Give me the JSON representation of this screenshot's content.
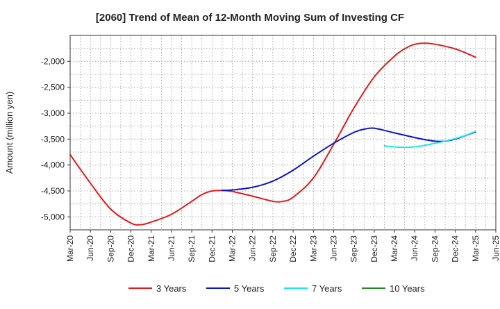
{
  "chart_data": {
    "type": "line",
    "title": "[2060]  Trend of Mean of 12-Month Moving Sum of Investing CF",
    "ylabel": "Amount (million yen)",
    "xlabel": "",
    "xlim": [
      0,
      21
    ],
    "ylim": [
      -5250,
      -1500
    ],
    "y_ticks": [
      -2000,
      -2500,
      -3000,
      -3500,
      -4000,
      -4500,
      -5000
    ],
    "y_tick_labels": [
      "-2,000",
      "-2,500",
      "-3,000",
      "-3,500",
      "-4,000",
      "-4,500",
      "-5,000"
    ],
    "x_tick_labels": [
      "Mar-20",
      "Jun-20",
      "Sep-20",
      "Dec-20",
      "Mar-21",
      "Jun-21",
      "Sep-21",
      "Dec-21",
      "Mar-22",
      "Jun-22",
      "Sep-22",
      "Dec-22",
      "Mar-23",
      "Jun-23",
      "Sep-23",
      "Dec-23",
      "Mar-24",
      "Jun-24",
      "Sep-24",
      "Dec-24",
      "Mar-25",
      "Jun-25"
    ],
    "grid": true,
    "legend_position": "bottom",
    "series": [
      {
        "name": "3 Years",
        "color": "#e31a1c",
        "x": [
          0,
          1,
          2,
          3,
          3.5,
          4,
          5,
          6,
          6.5,
          7,
          7.5,
          8,
          9,
          10,
          10.5,
          11,
          12,
          13,
          13.5,
          14,
          15,
          16,
          16.5,
          17,
          17.5,
          18,
          19,
          20
        ],
        "values": [
          -3800,
          -4350,
          -4850,
          -5120,
          -5150,
          -5100,
          -4950,
          -4700,
          -4570,
          -4500,
          -4490,
          -4510,
          -4600,
          -4700,
          -4700,
          -4620,
          -4250,
          -3600,
          -3250,
          -2900,
          -2300,
          -1900,
          -1760,
          -1670,
          -1650,
          -1670,
          -1760,
          -1920
        ]
      },
      {
        "name": "5 Years",
        "color": "#0a14c8",
        "x": [
          7.5,
          8,
          9,
          10,
          11,
          12,
          13,
          14,
          14.5,
          15,
          16,
          17,
          17.5,
          18,
          18.5,
          19,
          20
        ],
        "values": [
          -4490,
          -4480,
          -4430,
          -4310,
          -4100,
          -3830,
          -3580,
          -3370,
          -3310,
          -3290,
          -3380,
          -3470,
          -3510,
          -3540,
          -3540,
          -3500,
          -3360
        ]
      },
      {
        "name": "7 Years",
        "color": "#19e6f0",
        "x": [
          15.5,
          16,
          16.5,
          17,
          17.5,
          18,
          18.5,
          19,
          19.5,
          20
        ],
        "values": [
          -3630,
          -3650,
          -3660,
          -3650,
          -3620,
          -3580,
          -3540,
          -3490,
          -3430,
          -3350
        ]
      },
      {
        "name": "10 Years",
        "color": "#228b22",
        "x": [],
        "values": []
      }
    ]
  }
}
